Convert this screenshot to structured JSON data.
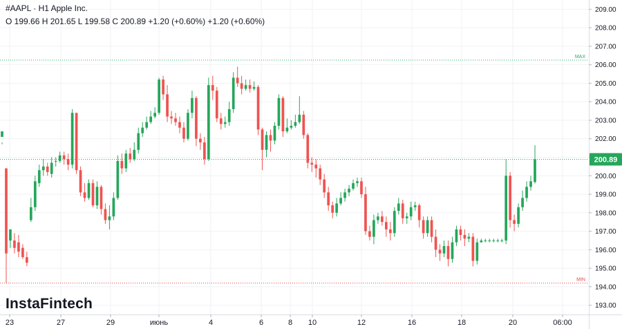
{
  "header": {
    "symbol_line": "#AAPL · H1 Apple Inc.",
    "ohlc_line": "O 199.66 H 201.65 L 199.58 C 200.89 +1.20 (+0.60%) +1.20 (+0.60%)"
  },
  "branding": {
    "logo_text": "InstaFintech"
  },
  "colors": {
    "up": "#26a65b",
    "down": "#ef5350",
    "max_line": "#2ca86b",
    "min_line": "#e04b4b",
    "last_line": "#26a65b"
  },
  "chart_data": {
    "type": "candlestick",
    "symbol": "#AAPL",
    "timeframe": "H1",
    "ylim": [
      192.5,
      209.5
    ],
    "y_ticks": [
      "193.00",
      "194.00",
      "195.00",
      "196.00",
      "197.00",
      "198.00",
      "199.00",
      "200.00",
      "201.00",
      "202.00",
      "203.00",
      "204.00",
      "205.00",
      "206.00",
      "207.00",
      "208.00",
      "209.00"
    ],
    "x_ticks": [
      "23",
      "27",
      "29",
      "июнь",
      "4",
      "6",
      "8",
      "10",
      "12",
      "16",
      "18",
      "20",
      "06:00"
    ],
    "levels": {
      "max": {
        "label": "MAX",
        "value": 206.25
      },
      "min": {
        "label": "MIN",
        "value": 194.2
      },
      "last": {
        "label": "200.89",
        "value": 200.89
      }
    },
    "candles": [
      [
        202.1,
        202.4,
        201.8,
        201.7
      ],
      [
        200.4,
        195.8,
        196.5,
        194.2
      ],
      [
        196.5,
        197.1,
        197.0,
        196.1
      ],
      [
        196.5,
        196.1,
        196.9,
        195.8
      ],
      [
        196.4,
        195.9,
        196.8,
        195.6
      ],
      [
        196.1,
        195.6,
        196.3,
        195.5
      ],
      [
        195.6,
        195.3,
        195.9,
        195.1
      ],
      [
        197.6,
        198.3,
        198.8,
        197.5
      ],
      [
        198.3,
        199.7,
        200.0,
        198.1
      ],
      [
        199.6,
        200.3,
        200.6,
        199.4
      ],
      [
        200.3,
        200.5,
        200.9,
        200.0
      ],
      [
        200.5,
        200.2,
        200.7,
        200.0
      ],
      [
        200.1,
        200.7,
        201.0,
        199.9
      ],
      [
        200.8,
        200.8,
        201.0,
        200.5
      ],
      [
        200.8,
        201.1,
        201.3,
        200.7
      ],
      [
        201.1,
        200.9,
        201.3,
        200.6
      ],
      [
        200.9,
        200.6,
        201.2,
        200.3
      ],
      [
        200.6,
        203.4,
        203.6,
        200.4
      ],
      [
        203.4,
        200.3,
        202.1,
        200.1
      ],
      [
        200.3,
        199.1,
        200.5,
        198.9
      ],
      [
        199.1,
        198.8,
        199.6,
        198.6
      ],
      [
        198.8,
        199.6,
        199.8,
        198.7
      ],
      [
        199.6,
        198.4,
        199.8,
        198.3
      ],
      [
        198.4,
        199.4,
        199.7,
        198.2
      ],
      [
        199.4,
        198.2,
        199.5,
        197.9
      ],
      [
        198.2,
        197.6,
        198.5,
        197.4
      ],
      [
        197.6,
        197.8,
        198.4,
        197.1
      ],
      [
        197.8,
        198.8,
        199.1,
        197.6
      ],
      [
        198.8,
        200.8,
        201.1,
        198.7
      ],
      [
        200.8,
        200.4,
        201.2,
        200.1
      ],
      [
        200.4,
        201.2,
        201.4,
        200.2
      ],
      [
        201.2,
        200.9,
        201.5,
        200.7
      ],
      [
        200.9,
        201.4,
        201.8,
        200.8
      ],
      [
        201.4,
        202.3,
        202.6,
        201.2
      ],
      [
        202.3,
        202.6,
        202.9,
        202.1
      ],
      [
        202.6,
        202.9,
        203.2,
        202.5
      ],
      [
        202.9,
        203.2,
        203.5,
        202.8
      ],
      [
        203.2,
        203.4,
        203.7,
        203.1
      ],
      [
        203.4,
        205.2,
        205.3,
        203.3
      ],
      [
        205.2,
        204.4,
        205.4,
        204.1
      ],
      [
        204.4,
        203.2,
        204.9,
        202.9
      ],
      [
        203.2,
        203.1,
        203.5,
        202.8
      ],
      [
        203.1,
        202.9,
        203.4,
        202.7
      ],
      [
        202.9,
        202.6,
        203.2,
        202.3
      ],
      [
        202.6,
        202.0,
        202.9,
        201.8
      ],
      [
        202.0,
        203.4,
        203.6,
        201.9
      ],
      [
        203.4,
        204.2,
        204.6,
        203.1
      ],
      [
        204.2,
        202.0,
        204.3,
        201.6
      ],
      [
        202.0,
        201.8,
        202.3,
        201.4
      ],
      [
        201.8,
        200.9,
        202.1,
        200.6
      ],
      [
        200.9,
        204.9,
        205.3,
        200.8
      ],
      [
        204.9,
        204.6,
        205.4,
        204.1
      ],
      [
        204.6,
        203.1,
        204.8,
        202.9
      ],
      [
        203.1,
        202.8,
        203.4,
        202.5
      ],
      [
        202.8,
        202.9,
        203.2,
        202.6
      ],
      [
        202.9,
        203.6,
        204.0,
        202.7
      ],
      [
        203.6,
        205.3,
        205.6,
        203.4
      ],
      [
        205.3,
        205.0,
        205.9,
        204.8
      ],
      [
        205.0,
        204.7,
        205.4,
        204.4
      ],
      [
        204.7,
        204.9,
        205.2,
        204.6
      ],
      [
        204.9,
        204.7,
        205.2,
        204.5
      ],
      [
        204.7,
        204.8,
        205.1,
        204.6
      ],
      [
        204.8,
        202.5,
        204.9,
        202.2
      ],
      [
        202.5,
        201.4,
        202.6,
        200.3
      ],
      [
        201.4,
        202.2,
        202.4,
        201.0
      ],
      [
        202.2,
        201.9,
        202.5,
        201.3
      ],
      [
        201.9,
        202.7,
        202.9,
        201.7
      ],
      [
        202.7,
        204.2,
        204.4,
        202.5
      ],
      [
        204.2,
        202.4,
        204.3,
        202.1
      ],
      [
        202.4,
        202.6,
        203.1,
        202.3
      ],
      [
        202.6,
        202.7,
        203.0,
        202.5
      ],
      [
        202.7,
        202.9,
        203.3,
        202.6
      ],
      [
        202.9,
        203.3,
        204.3,
        202.8
      ],
      [
        203.3,
        202.2,
        203.5,
        202.0
      ],
      [
        202.2,
        200.7,
        202.3,
        200.4
      ],
      [
        200.7,
        200.6,
        201.0,
        200.2
      ],
      [
        200.6,
        200.4,
        200.9,
        199.9
      ],
      [
        200.4,
        199.8,
        200.6,
        199.5
      ],
      [
        199.8,
        199.1,
        200.1,
        198.8
      ],
      [
        199.1,
        198.4,
        199.4,
        198.1
      ],
      [
        198.4,
        198.0,
        198.6,
        197.7
      ],
      [
        198.0,
        198.5,
        198.8,
        197.8
      ],
      [
        198.5,
        198.8,
        199.1,
        198.4
      ],
      [
        198.8,
        199.1,
        199.3,
        198.6
      ],
      [
        199.1,
        199.3,
        199.5,
        198.9
      ],
      [
        199.3,
        199.6,
        199.8,
        199.2
      ],
      [
        199.6,
        199.7,
        199.9,
        199.4
      ],
      [
        199.7,
        199.0,
        199.9,
        198.8
      ],
      [
        199.0,
        197.0,
        199.4,
        196.8
      ],
      [
        197.0,
        196.7,
        197.3,
        196.5
      ],
      [
        196.7,
        197.6,
        197.9,
        196.3
      ],
      [
        197.6,
        197.8,
        198.0,
        197.4
      ],
      [
        197.8,
        197.5,
        198.1,
        197.3
      ],
      [
        197.5,
        197.1,
        197.8,
        196.7
      ],
      [
        197.1,
        196.9,
        197.5,
        196.5
      ],
      [
        196.9,
        198.1,
        198.3,
        196.7
      ],
      [
        198.1,
        198.5,
        198.8,
        197.9
      ],
      [
        198.5,
        197.7,
        198.7,
        197.4
      ],
      [
        197.7,
        197.8,
        198.0,
        197.4
      ],
      [
        197.8,
        198.3,
        198.6,
        197.6
      ],
      [
        198.3,
        198.4,
        198.6,
        198.1
      ],
      [
        198.4,
        197.6,
        198.5,
        197.2
      ],
      [
        197.6,
        196.9,
        197.8,
        196.6
      ],
      [
        196.9,
        197.6,
        197.8,
        196.7
      ],
      [
        197.6,
        196.7,
        197.8,
        196.4
      ],
      [
        196.7,
        196.0,
        197.1,
        195.6
      ],
      [
        196.0,
        195.8,
        196.3,
        195.4
      ],
      [
        195.8,
        196.2,
        196.5,
        195.6
      ],
      [
        196.2,
        195.5,
        196.5,
        195.1
      ],
      [
        195.5,
        196.4,
        196.7,
        195.3
      ],
      [
        196.4,
        197.1,
        197.3,
        196.2
      ],
      [
        197.1,
        196.8,
        197.3,
        196.5
      ],
      [
        196.8,
        196.6,
        197.1,
        196.2
      ],
      [
        196.6,
        196.7,
        196.9,
        196.4
      ],
      [
        196.7,
        195.4,
        196.9,
        195.1
      ],
      [
        195.4,
        196.4,
        196.6,
        195.2
      ],
      [
        196.4,
        196.5,
        196.6,
        196.4
      ],
      [
        196.5,
        196.5,
        196.6,
        196.4
      ],
      [
        196.5,
        196.5,
        196.6,
        196.4
      ],
      [
        196.5,
        196.5,
        196.6,
        196.4
      ],
      [
        196.5,
        196.5,
        196.6,
        196.4
      ],
      [
        196.5,
        196.5,
        196.6,
        196.4
      ],
      [
        196.5,
        200.0,
        200.9,
        196.3
      ],
      [
        200.0,
        197.6,
        200.2,
        197.2
      ],
      [
        197.6,
        197.4,
        197.9,
        197.0
      ],
      [
        197.4,
        198.3,
        198.5,
        197.2
      ],
      [
        198.3,
        198.8,
        199.2,
        198.1
      ],
      [
        198.8,
        199.4,
        199.7,
        198.6
      ],
      [
        199.4,
        199.7,
        200.0,
        199.2
      ],
      [
        199.66,
        200.89,
        201.65,
        199.58
      ]
    ]
  }
}
